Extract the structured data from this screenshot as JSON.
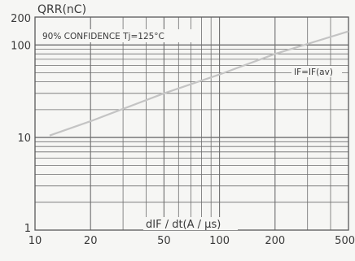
{
  "chart_data": {
    "type": "line",
    "scale": {
      "x": "log",
      "y": "log"
    },
    "xlim": [
      10,
      500
    ],
    "ylim": [
      1,
      200
    ],
    "grid": true,
    "y_unit_label": "QRR(nC)",
    "xlabel": "dIF / dt(A / μs)",
    "annotations": {
      "confidence": "90% CONFIDENCE  Tj=125°C",
      "series_note": "IF=IF(av)"
    },
    "x_ticks": [
      {
        "value": 10,
        "label": "10"
      },
      {
        "value": 20,
        "label": "20"
      },
      {
        "value": 50,
        "label": "50"
      },
      {
        "value": 100,
        "label": "100"
      },
      {
        "value": 200,
        "label": "200"
      },
      {
        "value": 500,
        "label": "500"
      }
    ],
    "y_ticks": [
      {
        "value": 1,
        "label": "1"
      },
      {
        "value": 10,
        "label": "10"
      },
      {
        "value": 100,
        "label": "100"
      },
      {
        "value": 200,
        "label": "200"
      }
    ],
    "series": [
      {
        "name": "IF=IF(av)",
        "x": [
          12,
          20,
          50,
          100,
          200,
          500
        ],
        "y": [
          10.5,
          15,
          30,
          48,
          80,
          140
        ]
      }
    ],
    "colors": {
      "line": "#c4c4c4",
      "grid": "#6e6e6e",
      "text": "#3a3a3a",
      "background": "#f6f6f4"
    }
  }
}
